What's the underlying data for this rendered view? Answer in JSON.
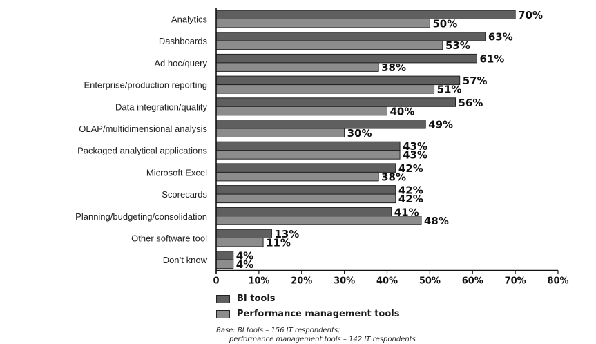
{
  "chart_data": {
    "type": "bar",
    "orientation": "horizontal",
    "categories": [
      "Analytics",
      "Dashboards",
      "Ad hoc/query",
      "Enterprise/production reporting",
      "Data integration/quality",
      "OLAP/multidimensional analysis",
      "Packaged analytical applications",
      "Microsoft Excel",
      "Scorecards",
      "Planning/budgeting/consolidation",
      "Other software tool",
      "Don’t know"
    ],
    "series": [
      {
        "name": "BI tools",
        "color": "#5f5f5f",
        "values": [
          70,
          63,
          61,
          57,
          56,
          49,
          43,
          42,
          42,
          41,
          13,
          4
        ]
      },
      {
        "name": "Performance management tools",
        "color": "#8c8c8c",
        "values": [
          50,
          53,
          38,
          51,
          40,
          30,
          43,
          38,
          42,
          48,
          11,
          4
        ]
      }
    ],
    "value_suffix": "%",
    "xlim": [
      0,
      80
    ],
    "xticks": [
      "0",
      "10%",
      "20%",
      "30%",
      "40%",
      "50%",
      "60%",
      "70%",
      "80%"
    ],
    "grid": false,
    "legend_position": "bottom-left"
  },
  "base_note": {
    "line1": "Base: BI tools – 156 IT respondents;",
    "line2": "performance management tools – 142 IT respondents"
  }
}
